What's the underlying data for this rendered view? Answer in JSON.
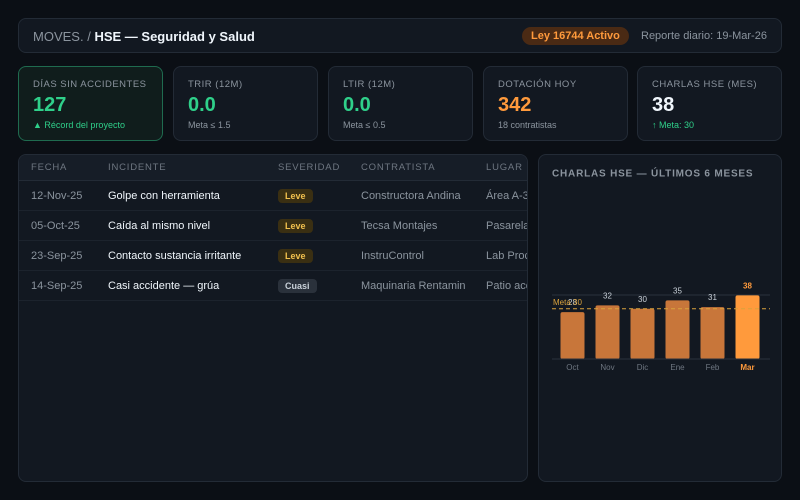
{
  "header": {
    "breadcrumb": [
      "MOVES.",
      "HSE — Seguridad y Salud"
    ],
    "separator": "/",
    "badge": "Ley 16744 Activo",
    "report": "Reporte diario: 19-Mar-26"
  },
  "kpis": [
    {
      "label": "DÍAS SIN ACCIDENTES",
      "value": "127",
      "note": "▲ Récord del proyecto"
    },
    {
      "label": "TRIR (12M)",
      "value": "0.0",
      "note": "Meta ≤ 1.5"
    },
    {
      "label": "LTIR (12M)",
      "value": "0.0",
      "note": "Meta ≤ 0.5"
    },
    {
      "label": "DOTACIÓN HOY",
      "value": "342",
      "note": "18 contratistas"
    },
    {
      "label": "CHARLAS HSE (MES)",
      "value": "38",
      "note": "↑ Meta: 30"
    }
  ],
  "table": {
    "columns": [
      "FECHA",
      "INCIDENTE",
      "SEVERIDAD",
      "CONTRATISTA",
      "LUGAR"
    ],
    "rows": [
      [
        "12-Nov-25",
        "Golpe con herramienta",
        "Leve",
        "Constructora Andina",
        "Área A-3"
      ],
      [
        "05-Oct-25",
        "Caída al mismo nivel",
        "Leve",
        "Tecsa Montajes",
        "Pasarela"
      ],
      [
        "23-Sep-25",
        "Contacto sustancia irritante",
        "Leve",
        "InstruControl",
        "Lab Proc"
      ],
      [
        "14-Sep-25",
        "Casi accidente — grúa",
        "Cuasi",
        "Maquinaria Rentamin",
        "Patio acc"
      ]
    ]
  },
  "chart_data": {
    "type": "bar",
    "title": "CHARLAS HSE — ÚLTIMOS 6 MESES",
    "categories": [
      "Oct",
      "Nov",
      "Dic",
      "Ene",
      "Feb",
      "Mar"
    ],
    "values": [
      28,
      32,
      30,
      35,
      31,
      38
    ],
    "colors": [
      "#c8763a",
      "#c8763a",
      "#c8763a",
      "#c8763a",
      "#c8763a",
      "#ff9a3c"
    ],
    "ylim": [
      0,
      40
    ],
    "target": {
      "value": 30,
      "label": "Meta 30"
    }
  }
}
